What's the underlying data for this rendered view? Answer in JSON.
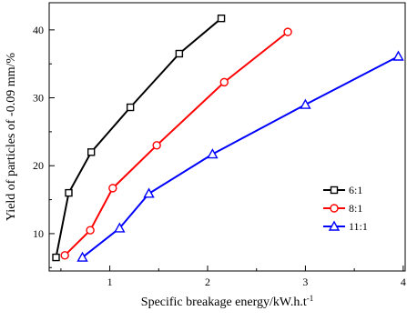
{
  "chart_data": {
    "type": "line",
    "title": "",
    "xlabel": "Specific breakage energy/kW.h.t",
    "xlabel_superscript": "-1",
    "ylabel": "Yield of particles of -0.09 mm/%",
    "xlim": [
      0.38,
      4.02
    ],
    "ylim": [
      4.5,
      44
    ],
    "xticks": [
      1,
      2,
      3,
      4
    ],
    "yticks": [
      10,
      20,
      30,
      40
    ],
    "grid": false,
    "legend_position": "right",
    "series": [
      {
        "name": "6:1",
        "color": "#000000",
        "marker": "square",
        "x": [
          0.45,
          0.58,
          0.81,
          1.21,
          1.71,
          2.14
        ],
        "y": [
          6.5,
          16,
          22,
          28.6,
          36.5,
          41.7
        ]
      },
      {
        "name": "8:1",
        "color": "#ff0000",
        "marker": "circle",
        "x": [
          0.54,
          0.8,
          1.03,
          1.48,
          2.17,
          2.82
        ],
        "y": [
          6.8,
          10.5,
          16.7,
          23,
          32.3,
          39.7
        ]
      },
      {
        "name": "11:1",
        "color": "#0000ff",
        "marker": "triangle",
        "x": [
          0.72,
          1.1,
          1.4,
          2.05,
          3.0,
          3.95
        ],
        "y": [
          6.5,
          10.8,
          15.9,
          21.7,
          29,
          36.1
        ]
      }
    ]
  }
}
